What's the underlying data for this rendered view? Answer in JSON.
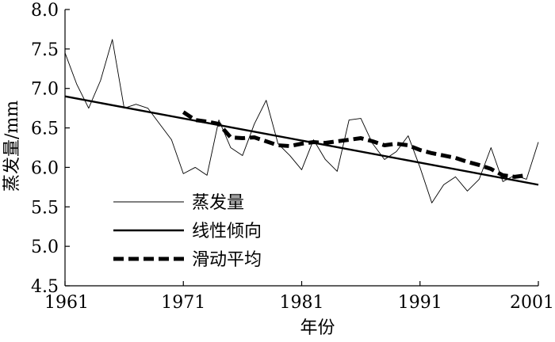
{
  "chart_data": {
    "type": "line",
    "title": "",
    "xlabel": "年份",
    "ylabel": "蒸发量/mm",
    "xlim": [
      1961,
      2001
    ],
    "ylim": [
      4.5,
      8.0
    ],
    "xticks": [
      1961,
      1971,
      1981,
      1991,
      2001
    ],
    "xtick_labels": [
      "1961",
      "1971",
      "1981",
      "1991",
      "2001"
    ],
    "yticks": [
      4.5,
      5.0,
      5.5,
      6.0,
      6.5,
      7.0,
      7.5,
      8.0
    ],
    "ytick_labels": [
      "4.5",
      "5.0",
      "5.5",
      "6.0",
      "6.5",
      "7.0",
      "7.5",
      "8.0"
    ],
    "grid": false,
    "legend_position": "lower-left",
    "series": [
      {
        "name": "蒸发量",
        "style": "thin",
        "x": [
          1961,
          1962,
          1963,
          1964,
          1965,
          1966,
          1967,
          1968,
          1969,
          1970,
          1971,
          1972,
          1973,
          1974,
          1975,
          1976,
          1977,
          1978,
          1979,
          1980,
          1981,
          1982,
          1983,
          1984,
          1985,
          1986,
          1987,
          1988,
          1989,
          1990,
          1991,
          1992,
          1993,
          1994,
          1995,
          1996,
          1997,
          1998,
          1999,
          2000,
          2001
        ],
        "values": [
          7.45,
          7.05,
          6.75,
          7.1,
          7.62,
          6.75,
          6.8,
          6.75,
          6.55,
          6.35,
          5.92,
          6.0,
          5.9,
          6.6,
          6.25,
          6.15,
          6.55,
          6.85,
          6.3,
          6.15,
          5.97,
          6.35,
          6.1,
          5.95,
          6.6,
          6.62,
          6.3,
          6.1,
          6.2,
          6.4,
          6.0,
          5.55,
          5.78,
          5.88,
          5.7,
          5.85,
          6.25,
          5.82,
          5.9,
          5.85,
          6.32
        ]
      },
      {
        "name": "线性倾向",
        "style": "solid",
        "x": [
          1961,
          2001
        ],
        "values": [
          6.9,
          5.78
        ]
      },
      {
        "name": "滑动平均",
        "style": "dashed",
        "x": [
          1971,
          1972,
          1973,
          1974,
          1975,
          1976,
          1977,
          1978,
          1979,
          1980,
          1981,
          1982,
          1983,
          1984,
          1985,
          1986,
          1987,
          1988,
          1989,
          1990,
          1991,
          1992,
          1993,
          1994,
          1995,
          1996,
          1997,
          1998,
          1999,
          2000
        ],
        "values": [
          6.7,
          6.6,
          6.58,
          6.55,
          6.38,
          6.37,
          6.38,
          6.33,
          6.28,
          6.27,
          6.3,
          6.32,
          6.31,
          6.33,
          6.35,
          6.37,
          6.33,
          6.28,
          6.3,
          6.28,
          6.22,
          6.18,
          6.15,
          6.12,
          6.07,
          6.03,
          5.98,
          5.9,
          5.88,
          5.9
        ]
      }
    ]
  }
}
